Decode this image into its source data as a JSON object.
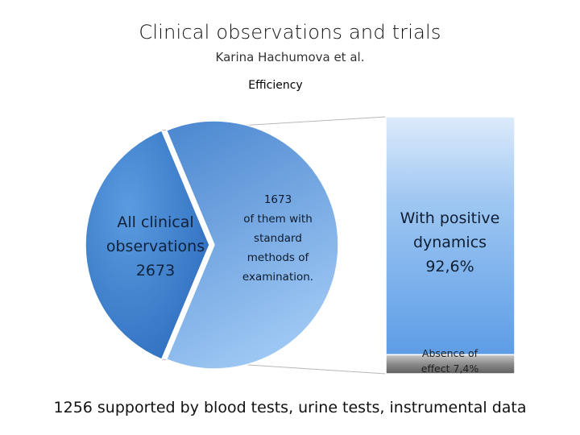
{
  "chart_data": {
    "type": "pie",
    "title": "Clinical observations and trials",
    "subtitle": "Karina Hachumova et al.",
    "chart_label": "Efficiency",
    "pie": {
      "slices": [
        {
          "label": "All clinical\nobservations\n2673",
          "value": 1000
        },
        {
          "label": "1673\nof them with\nstandard\nmethods of\nexamination.",
          "value": 1673
        }
      ]
    },
    "bar": {
      "type": "stacked-bar",
      "segments": [
        {
          "label": "With positive\ndynamics\n92,6%",
          "value": 92.6
        },
        {
          "label": "Absence of\neffect 7,4%",
          "value": 7.4
        }
      ]
    },
    "footer": "1256 supported by blood tests, urine tests, instrumental data",
    "colors": {
      "pie_main": "#3d7fce",
      "pie_sub": "#5f9bdb",
      "bar_positive": "#6eaaea",
      "bar_negative": "#7a7a7a"
    }
  }
}
